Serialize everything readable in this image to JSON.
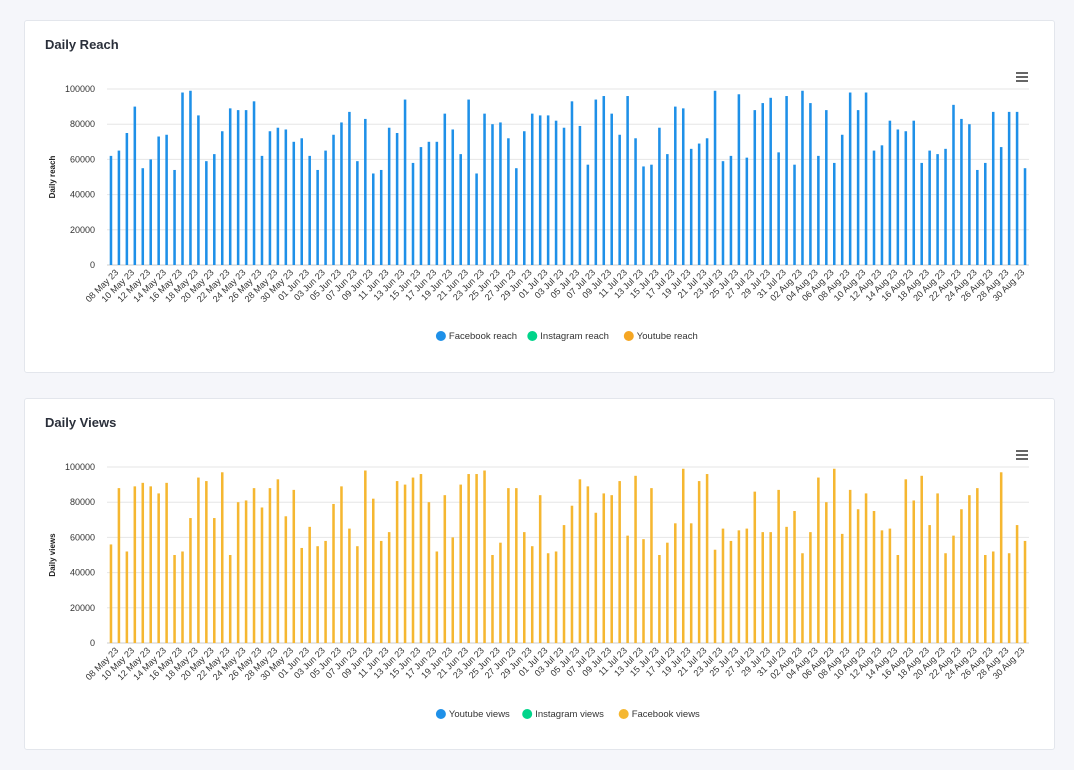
{
  "menu_icon": "hamburger-menu-icon",
  "chart_data": [
    {
      "type": "bar",
      "title": "Daily Reach",
      "ylabel": "Daily reach",
      "xlabel": "",
      "ylim": [
        0,
        100000
      ],
      "yticks": [
        "0",
        "20000",
        "40000",
        "60000",
        "80000",
        "100000"
      ],
      "grid": true,
      "legend_position": "bottom",
      "tick_labels": [
        "08 May 23",
        "10 May 23",
        "12 May 23",
        "14 May 23",
        "16 May 23",
        "18 May 23",
        "20 May 23",
        "22 May 23",
        "24 May 23",
        "26 May 23",
        "28 May 23",
        "30 May 23",
        "01 Jun 23",
        "03 Jun 23",
        "05 Jun 23",
        "07 Jun 23",
        "09 Jun 23",
        "11 Jun 23",
        "13 Jun 23",
        "15 Jun 23",
        "17 Jun 23",
        "19 Jun 23",
        "21 Jun 23",
        "23 Jun 23",
        "25 Jun 23",
        "27 Jun 23",
        "29 Jun 23",
        "01 Jul 23",
        "03 Jul 23",
        "05 Jul 23",
        "07 Jul 23",
        "09 Jul 23",
        "11 Jul 23",
        "13 Jul 23",
        "15 Jul 23",
        "17 Jul 23",
        "19 Jul 23",
        "21 Jul 23",
        "23 Jul 23",
        "25 Jul 23",
        "27 Jul 23",
        "29 Jul 23",
        "31 Jul 23",
        "02 Aug 23",
        "04 Aug 23",
        "06 Aug 23",
        "08 Aug 23",
        "10 Aug 23",
        "12 Aug 23",
        "14 Aug 23",
        "16 Aug 23",
        "18 Aug 23",
        "20 Aug 23",
        "22 Aug 23",
        "24 Aug 23",
        "26 Aug 23",
        "28 Aug 23",
        "30 Aug 23"
      ],
      "series": [
        {
          "name": "Facebook reach",
          "color": "#1e90e8",
          "values": [
            62000,
            65000,
            75000,
            90000,
            55000,
            60000,
            73000,
            74000,
            54000,
            98000,
            99000,
            85000,
            59000,
            63000,
            76000,
            89000,
            88000,
            88000,
            93000,
            62000,
            76000,
            78000,
            77000,
            70000,
            72000,
            62000,
            54000,
            65000,
            74000,
            81000,
            87000,
            59000,
            83000,
            52000,
            54000,
            78000,
            75000,
            94000,
            58000,
            67000,
            70000,
            70000,
            86000,
            77000,
            63000,
            94000,
            52000,
            86000,
            80000,
            81000,
            72000,
            55000,
            76000,
            86000,
            85000,
            85000,
            82000,
            78000,
            93000,
            79000,
            57000,
            94000,
            96000,
            86000,
            74000,
            96000,
            72000,
            56000,
            57000,
            78000,
            63000,
            90000,
            89000,
            66000,
            69000,
            72000,
            99000,
            59000,
            62000,
            97000,
            61000,
            88000,
            92000,
            95000,
            64000,
            96000,
            57000,
            99000,
            92000,
            62000,
            88000,
            58000,
            74000,
            98000,
            88000,
            98000,
            65000,
            68000,
            82000,
            77000,
            76000,
            82000,
            58000,
            65000,
            63000,
            66000,
            91000,
            83000,
            80000,
            54000,
            58000,
            87000,
            67000,
            87000,
            87000,
            55000
          ]
        },
        {
          "name": "Instagram reach",
          "color": "#00d48a",
          "values": []
        },
        {
          "name": "Youtube reach",
          "color": "#f5a623",
          "values": []
        }
      ]
    },
    {
      "type": "bar",
      "title": "Daily Views",
      "ylabel": "Daily views",
      "xlabel": "",
      "ylim": [
        0,
        100000
      ],
      "yticks": [
        "0",
        "20000",
        "40000",
        "60000",
        "80000",
        "100000"
      ],
      "grid": true,
      "legend_position": "bottom",
      "tick_labels": [
        "08 May 23",
        "10 May 23",
        "12 May 23",
        "14 May 23",
        "16 May 23",
        "18 May 23",
        "20 May 23",
        "22 May 23",
        "24 May 23",
        "26 May 23",
        "28 May 23",
        "30 May 23",
        "01 Jun 23",
        "03 Jun 23",
        "05 Jun 23",
        "07 Jun 23",
        "09 Jun 23",
        "11 Jun 23",
        "13 Jun 23",
        "15 Jun 23",
        "17 Jun 23",
        "19 Jun 23",
        "21 Jun 23",
        "23 Jun 23",
        "25 Jun 23",
        "27 Jun 23",
        "29 Jun 23",
        "01 Jul 23",
        "03 Jul 23",
        "05 Jul 23",
        "07 Jul 23",
        "09 Jul 23",
        "11 Jul 23",
        "13 Jul 23",
        "15 Jul 23",
        "17 Jul 23",
        "19 Jul 23",
        "21 Jul 23",
        "23 Jul 23",
        "25 Jul 23",
        "27 Jul 23",
        "29 Jul 23",
        "31 Jul 23",
        "02 Aug 23",
        "04 Aug 23",
        "06 Aug 23",
        "08 Aug 23",
        "10 Aug 23",
        "12 Aug 23",
        "14 Aug 23",
        "16 Aug 23",
        "18 Aug 23",
        "20 Aug 23",
        "22 Aug 23",
        "24 Aug 23",
        "26 Aug 23",
        "28 Aug 23",
        "30 Aug 23"
      ],
      "series": [
        {
          "name": "Youtube views",
          "color": "#1e90e8",
          "values": []
        },
        {
          "name": "Instagram views",
          "color": "#00d48a",
          "values": []
        },
        {
          "name": "Facebook views",
          "color": "#f5b731",
          "values": [
            56000,
            88000,
            52000,
            89000,
            91000,
            89000,
            85000,
            91000,
            50000,
            52000,
            71000,
            94000,
            92000,
            71000,
            97000,
            50000,
            80000,
            81000,
            88000,
            77000,
            88000,
            93000,
            72000,
            87000,
            54000,
            66000,
            55000,
            58000,
            79000,
            89000,
            65000,
            55000,
            98000,
            82000,
            58000,
            63000,
            92000,
            90000,
            94000,
            96000,
            80000,
            52000,
            84000,
            60000,
            90000,
            96000,
            96000,
            98000,
            50000,
            57000,
            88000,
            88000,
            63000,
            55000,
            84000,
            51000,
            52000,
            67000,
            78000,
            93000,
            89000,
            74000,
            85000,
            84000,
            92000,
            61000,
            95000,
            59000,
            88000,
            50000,
            57000,
            68000,
            99000,
            68000,
            92000,
            96000,
            53000,
            65000,
            58000,
            64000,
            65000,
            86000,
            63000,
            63000,
            87000,
            66000,
            75000,
            51000,
            63000,
            94000,
            80000,
            99000,
            62000,
            87000,
            76000,
            85000,
            75000,
            64000,
            65000,
            50000,
            93000,
            81000,
            95000,
            67000,
            85000,
            51000,
            61000,
            76000,
            84000,
            88000,
            50000,
            52000,
            97000,
            51000,
            67000,
            58000
          ]
        }
      ]
    }
  ]
}
